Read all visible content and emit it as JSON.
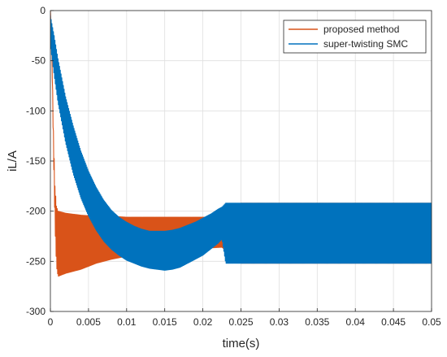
{
  "chart_data": {
    "type": "line",
    "title": "",
    "xlabel": "time(s)",
    "ylabel": "iL/A",
    "xlim": [
      0,
      0.05
    ],
    "ylim": [
      -300,
      0
    ],
    "grid": true,
    "legend_position": "top-right",
    "x_ticks": [
      "0",
      "0.005",
      "0.01",
      "0.015",
      "0.02",
      "0.025",
      "0.03",
      "0.035",
      "0.04",
      "0.045",
      "0.05"
    ],
    "y_ticks": [
      "0",
      "-50",
      "-100",
      "-150",
      "-200",
      "-250",
      "-300"
    ],
    "series": [
      {
        "name": "proposed method",
        "color": "#D95319",
        "x": [
          0,
          0.0002,
          0.0004,
          0.0006,
          0.0008,
          0.001,
          0.002,
          0.004,
          0.006,
          0.008,
          0.01,
          0.012,
          0.015,
          0.018,
          0.0225,
          0.025,
          0.03,
          0.035,
          0.04,
          0.045,
          0.05
        ],
        "upper": [
          0,
          -40,
          -120,
          -175,
          -195,
          -200,
          -202,
          -204,
          -205,
          -205,
          -206,
          -206,
          -206,
          -206,
          -206,
          -192,
          -192,
          -192,
          -192,
          -192,
          -192
        ],
        "lower": [
          0,
          -45,
          -140,
          -215,
          -255,
          -265,
          -262,
          -258,
          -252,
          -248,
          -245,
          -243,
          -240,
          -238,
          -236,
          -252,
          -252,
          -252,
          -252,
          -252,
          -252
        ]
      },
      {
        "name": "super-twisting SMC",
        "color": "#0072BD",
        "x": [
          0,
          0.0005,
          0.001,
          0.002,
          0.003,
          0.004,
          0.005,
          0.006,
          0.007,
          0.008,
          0.009,
          0.01,
          0.011,
          0.012,
          0.013,
          0.014,
          0.015,
          0.016,
          0.017,
          0.018,
          0.019,
          0.02,
          0.021,
          0.022,
          0.0225,
          0.023,
          0.025,
          0.03,
          0.035,
          0.04,
          0.045,
          0.05
        ],
        "upper": [
          -5,
          -25,
          -48,
          -86,
          -115,
          -140,
          -160,
          -176,
          -189,
          -199,
          -206,
          -211,
          -215,
          -218,
          -220,
          -220,
          -220,
          -219,
          -217,
          -214,
          -211,
          -207,
          -203,
          -198,
          -196,
          -192,
          -192,
          -192,
          -192,
          -192,
          -192,
          -192
        ],
        "lower": [
          -35,
          -65,
          -92,
          -132,
          -163,
          -187,
          -205,
          -219,
          -230,
          -238,
          -244,
          -249,
          -252,
          -255,
          -257,
          -258,
          -259,
          -258,
          -256,
          -252,
          -248,
          -244,
          -238,
          -232,
          -228,
          -252,
          -252,
          -252,
          -252,
          -252,
          -252,
          -252
        ]
      }
    ]
  }
}
